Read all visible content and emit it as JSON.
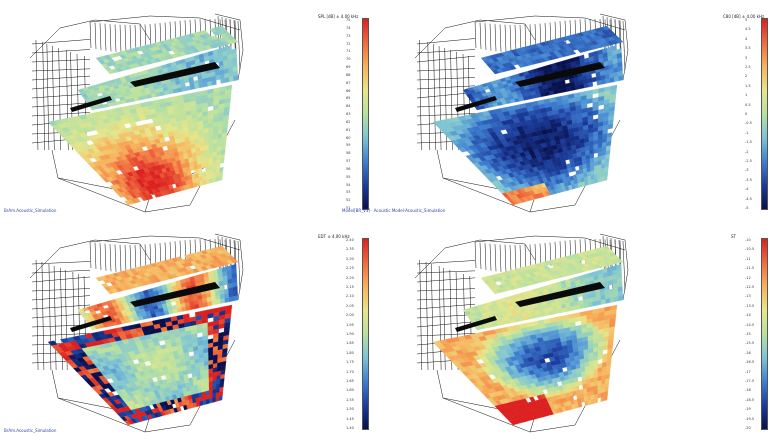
{
  "panels": [
    {
      "id": "tl",
      "footer": "BrAm.Acoustic_Simulation",
      "colorbar": {
        "title": "SPL [dB]  ± 4.00 kHz",
        "unit": "dB",
        "ticks": [
          "75",
          "74",
          "73",
          "72",
          "71",
          "70",
          "69",
          "68",
          "67",
          "66",
          "65",
          "64",
          "63",
          "62",
          "61",
          "60",
          "59",
          "58",
          "57",
          "56",
          "55",
          "54",
          "53",
          "52",
          "51"
        ]
      }
    },
    {
      "id": "tr",
      "footer": "",
      "colorbar": {
        "title": "C80 [dB]  ± 4.00 kHz",
        "unit": "dB",
        "ticks": [
          "5",
          "4.5",
          "4",
          "3.5",
          "3",
          "2.5",
          "2",
          "1.5",
          "1",
          "0.5",
          "0",
          "-0.5",
          "-1",
          "-1.5",
          "-2",
          "-2.5",
          "-3",
          "-3.5",
          "-4",
          "-4.5",
          "-5"
        ]
      }
    },
    {
      "id": "bl",
      "footer": "BrAm.Acoustic_Simulation",
      "colorbar": {
        "title": "EDT  ± 4.00 kHz",
        "unit": "s",
        "ticks": [
          "2.40",
          "2.35",
          "2.30",
          "2.25",
          "2.20",
          "2.15",
          "2.10",
          "2.05",
          "2.00",
          "1.95",
          "1.90",
          "1.85",
          "1.80",
          "1.75",
          "1.70",
          "1.65",
          "1.60",
          "1.55",
          "1.50",
          "1.45",
          "1.40"
        ]
      }
    },
    {
      "id": "br",
      "footer": "",
      "colorbar": {
        "title": "ST",
        "unit": "dB",
        "ticks": [
          "-10",
          "-10.5",
          "-11",
          "-11.5",
          "-12",
          "-12.5",
          "-13",
          "-13.5",
          "-14",
          "-14.5",
          "-15",
          "-15.5",
          "-16",
          "-16.5",
          "-17",
          "-17.5",
          "-18",
          "-18.5",
          "-19",
          "-19.5",
          "-20"
        ]
      }
    }
  ],
  "mid_caption": "Model[BR_V3] · Acoustic Model·Acoustic_Simulation",
  "colors": {
    "jet": [
      "#08104c",
      "#1c3d9c",
      "#3f7fd0",
      "#7cc3d6",
      "#b7e1a1",
      "#e8e589",
      "#f7b25c",
      "#ef6b3e",
      "#dc2020"
    ]
  }
}
